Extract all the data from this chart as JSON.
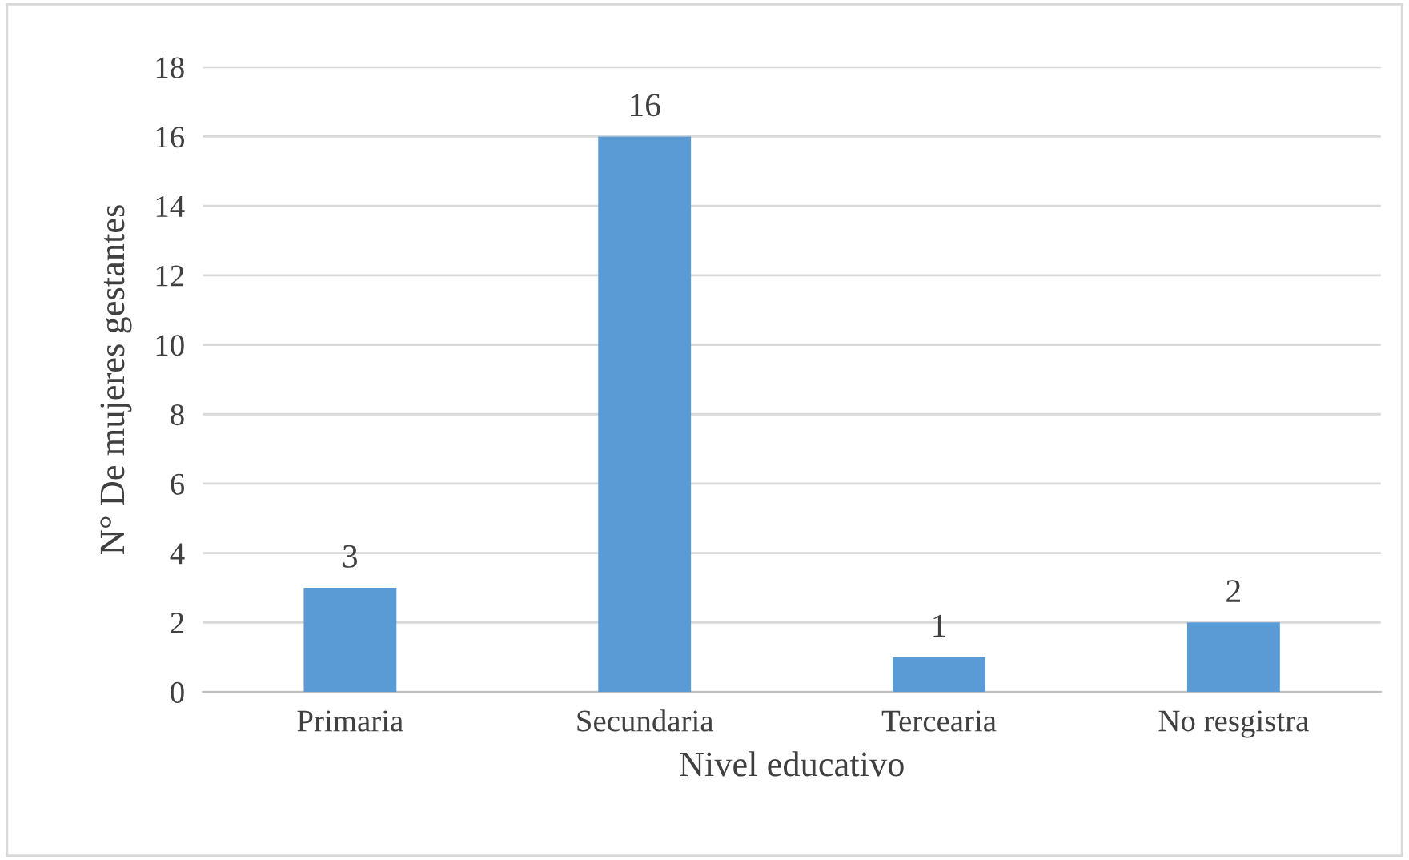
{
  "chart_data": {
    "type": "bar",
    "xlabel": "Nivel educativo",
    "ylabel": "N° De mujeres gestantes",
    "categories": [
      "Primaria",
      "Secundaria",
      "Tercearia",
      "No resgistra"
    ],
    "values": [
      3,
      16,
      1,
      2
    ],
    "color": "#5b9bd5",
    "ylim": [
      0,
      18
    ],
    "yticks": [
      0,
      2,
      4,
      6,
      8,
      10,
      12,
      14,
      16,
      18
    ],
    "grid": "y",
    "data_labels": true
  }
}
